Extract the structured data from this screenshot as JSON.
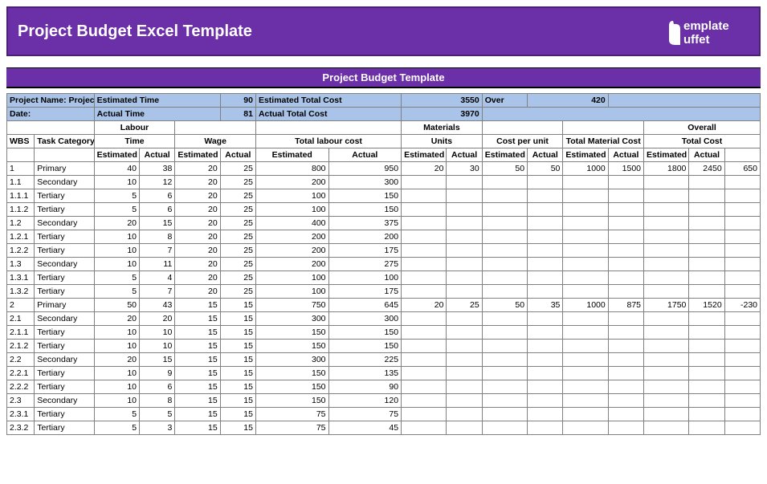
{
  "banner_title": "Project Budget Excel Template",
  "logo_top": "emplate",
  "logo_bottom": "uffet",
  "sub_title": "Project Budget Template",
  "colors": {
    "banner_bg": "#6b2fa8",
    "banner_border": "#4a1f75",
    "info_bg": "#a9c4e8",
    "grid_border": "#808080"
  },
  "info": {
    "project_name_label": "Project Name:",
    "project_name_value": "Project ABC",
    "date_label": "Date:",
    "est_time_label": "Estimated Time",
    "est_time_value": "90",
    "act_time_label": "Actual Time",
    "act_time_value": "81",
    "est_total_label": "Estimated Total Cost",
    "est_total_value": "3550",
    "act_total_label": "Actual Total Cost",
    "act_total_value": "3970",
    "over_label": "Over",
    "over_value": "420"
  },
  "group_headers": {
    "labour": "Labour",
    "materials": "Materials",
    "overall": "Overall",
    "wbs": "WBS",
    "task_category": "Task Category",
    "time": "Time",
    "wage": "Wage",
    "total_labour": "Total labour cost",
    "units": "Units",
    "cost_per_unit": "Cost per unit",
    "total_material": "Total Material Cost",
    "total_cost": "Total Cost",
    "estimated": "Estimated",
    "actual": "Actual"
  },
  "rows": [
    {
      "w": "1",
      "c": "Primary",
      "te": 40,
      "ta": 38,
      "we": 20,
      "wa": 25,
      "le": 800,
      "la": 950,
      "ue": 20,
      "ua": 30,
      "ce": 50,
      "ca": 50,
      "me": 1000,
      "ma": 1500,
      "oe": 1800,
      "oa": 2450,
      "d": 650
    },
    {
      "w": "1.1",
      "c": "Secondary",
      "te": 10,
      "ta": 12,
      "we": 20,
      "wa": 25,
      "le": 200,
      "la": 300
    },
    {
      "w": "1.1.1",
      "c": "Tertiary",
      "te": 5,
      "ta": 6,
      "we": 20,
      "wa": 25,
      "le": 100,
      "la": 150
    },
    {
      "w": "1.1.2",
      "c": "Tertiary",
      "te": 5,
      "ta": 6,
      "we": 20,
      "wa": 25,
      "le": 100,
      "la": 150
    },
    {
      "w": "1.2",
      "c": "Secondary",
      "te": 20,
      "ta": 15,
      "we": 20,
      "wa": 25,
      "le": 400,
      "la": 375
    },
    {
      "w": "1.2.1",
      "c": "Tertiary",
      "te": 10,
      "ta": 8,
      "we": 20,
      "wa": 25,
      "le": 200,
      "la": 200
    },
    {
      "w": "1.2.2",
      "c": "Tertiary",
      "te": 10,
      "ta": 7,
      "we": 20,
      "wa": 25,
      "le": 200,
      "la": 175
    },
    {
      "w": "1.3",
      "c": "Secondary",
      "te": 10,
      "ta": 11,
      "we": 20,
      "wa": 25,
      "le": 200,
      "la": 275
    },
    {
      "w": "1.3.1",
      "c": "Tertiary",
      "te": 5,
      "ta": 4,
      "we": 20,
      "wa": 25,
      "le": 100,
      "la": 100
    },
    {
      "w": "1.3.2",
      "c": "Tertiary",
      "te": 5,
      "ta": 7,
      "we": 20,
      "wa": 25,
      "le": 100,
      "la": 175
    },
    {
      "w": "2",
      "c": "Primary",
      "te": 50,
      "ta": 43,
      "we": 15,
      "wa": 15,
      "le": 750,
      "la": 645,
      "ue": 20,
      "ua": 25,
      "ce": 50,
      "ca": 35,
      "me": 1000,
      "ma": 875,
      "oe": 1750,
      "oa": 1520,
      "d": -230
    },
    {
      "w": "2.1",
      "c": "Secondary",
      "te": 20,
      "ta": 20,
      "we": 15,
      "wa": 15,
      "le": 300,
      "la": 300
    },
    {
      "w": "2.1.1",
      "c": "Tertiary",
      "te": 10,
      "ta": 10,
      "we": 15,
      "wa": 15,
      "le": 150,
      "la": 150
    },
    {
      "w": "2.1.2",
      "c": "Tertiary",
      "te": 10,
      "ta": 10,
      "we": 15,
      "wa": 15,
      "le": 150,
      "la": 150
    },
    {
      "w": "2.2",
      "c": "Secondary",
      "te": 20,
      "ta": 15,
      "we": 15,
      "wa": 15,
      "le": 300,
      "la": 225
    },
    {
      "w": "2.2.1",
      "c": "Tertiary",
      "te": 10,
      "ta": 9,
      "we": 15,
      "wa": 15,
      "le": 150,
      "la": 135
    },
    {
      "w": "2.2.2",
      "c": "Tertiary",
      "te": 10,
      "ta": 6,
      "we": 15,
      "wa": 15,
      "le": 150,
      "la": 90
    },
    {
      "w": "2.3",
      "c": "Secondary",
      "te": 10,
      "ta": 8,
      "we": 15,
      "wa": 15,
      "le": 150,
      "la": 120
    },
    {
      "w": "2.3.1",
      "c": "Tertiary",
      "te": 5,
      "ta": 5,
      "we": 15,
      "wa": 15,
      "le": 75,
      "la": 75
    },
    {
      "w": "2.3.2",
      "c": "Tertiary",
      "te": 5,
      "ta": 3,
      "we": 15,
      "wa": 15,
      "le": 75,
      "la": 45
    }
  ]
}
